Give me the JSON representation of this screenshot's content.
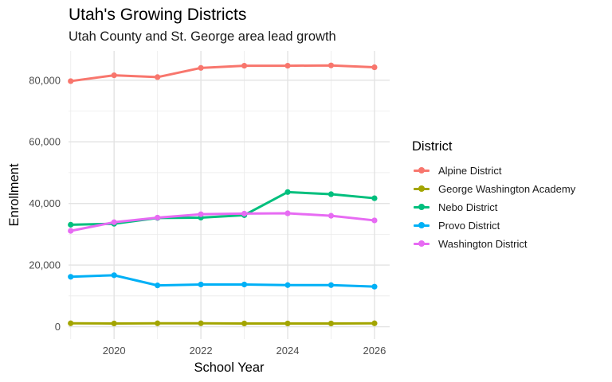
{
  "chart_data": {
    "type": "line",
    "title": "Utah's Growing Districts",
    "subtitle": "Utah County and St. George area lead growth",
    "xlabel": "School Year",
    "ylabel": "Enrollment",
    "x": [
      2019,
      2020,
      2021,
      2022,
      2023,
      2024,
      2025,
      2026
    ],
    "xticks": [
      2020,
      2022,
      2024,
      2026
    ],
    "xtick_labels": [
      "2020",
      "2022",
      "2024",
      "2026"
    ],
    "xlim": [
      2018.95,
      2026.35
    ],
    "yticks": [
      0,
      20000,
      40000,
      60000,
      80000
    ],
    "ytick_labels": [
      "0",
      "20,000",
      "40,000",
      "60,000",
      "80,000"
    ],
    "ylim": [
      -4000,
      89500
    ],
    "grid": true,
    "legend_title": "District",
    "legend_position": "right",
    "series": [
      {
        "name": "Alpine District",
        "color": "#F8766D",
        "values": [
          79700,
          81600,
          81000,
          84000,
          84700,
          84700,
          84800,
          84200
        ]
      },
      {
        "name": "George Washington Academy",
        "color": "#A3A500",
        "values": [
          1100,
          1050,
          1100,
          1100,
          1050,
          1050,
          1050,
          1100
        ]
      },
      {
        "name": "Nebo District",
        "color": "#00BF7D",
        "values": [
          33100,
          33400,
          35300,
          35400,
          36200,
          43700,
          43000,
          41700
        ]
      },
      {
        "name": "Provo District",
        "color": "#00B0F6",
        "values": [
          16200,
          16700,
          13400,
          13700,
          13700,
          13500,
          13500,
          13000
        ]
      },
      {
        "name": "Washington District",
        "color": "#E76BF3",
        "values": [
          31100,
          33900,
          35400,
          36500,
          36700,
          36800,
          36000,
          34500
        ]
      }
    ]
  }
}
